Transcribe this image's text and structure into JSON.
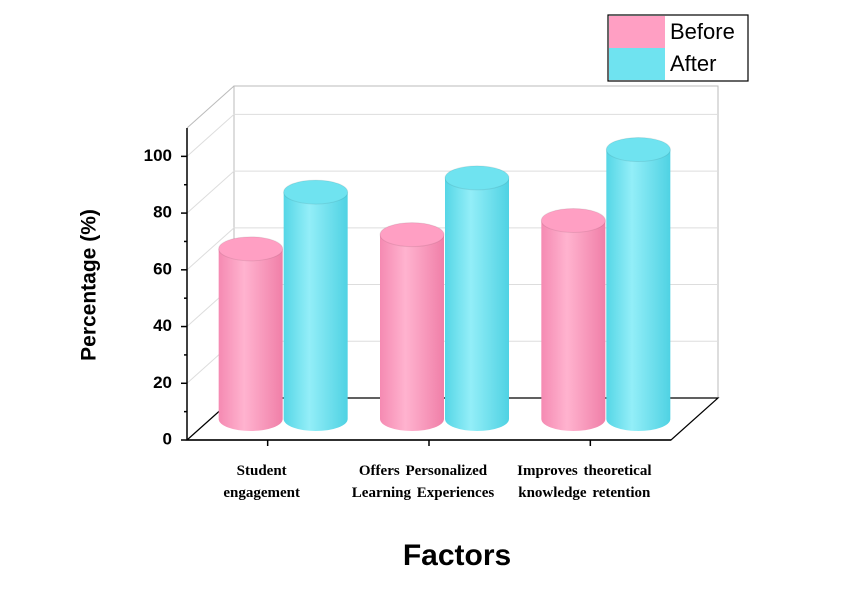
{
  "chart_data": {
    "type": "bar3d",
    "y_label": "Percentage (%)",
    "x_label": "Factors",
    "categories": [
      "Student engagement",
      "Offers Personalized Learning Experiences",
      "Improves theoretical knowledge retention"
    ],
    "series": [
      {
        "name": "Before",
        "color": "#ff9fc3",
        "values": [
          60,
          65,
          70
        ]
      },
      {
        "name": "After",
        "color": "#6fe3f0",
        "values": [
          80,
          85,
          95
        ]
      }
    ],
    "ylim": [
      0,
      110
    ],
    "yticks": [
      0,
      20,
      40,
      60,
      80,
      100
    ],
    "grid": true,
    "legend": "upper right"
  }
}
